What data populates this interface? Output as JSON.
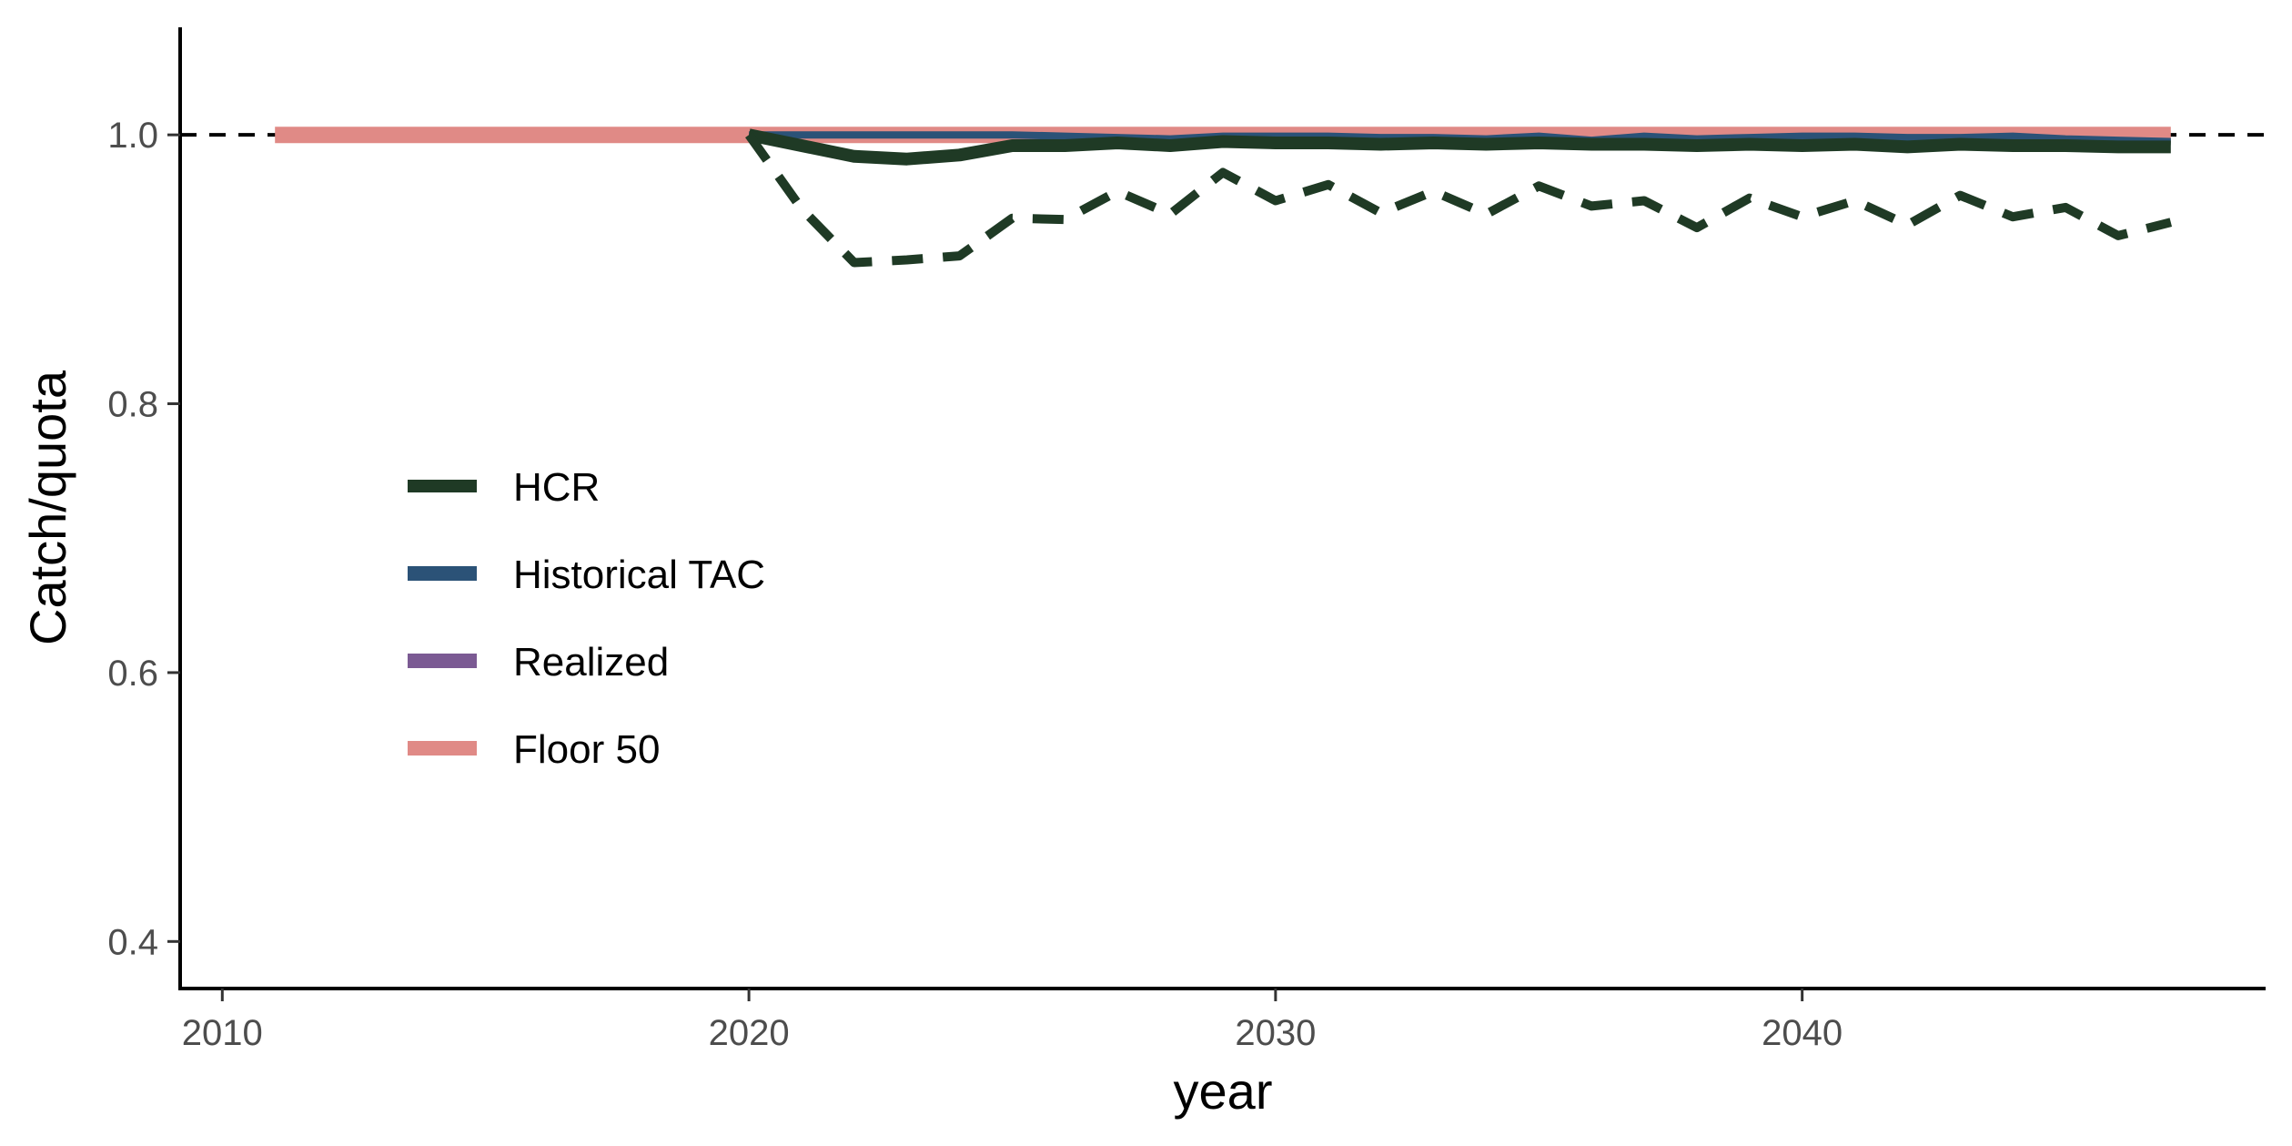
{
  "chart_data": {
    "type": "line",
    "title": "",
    "xlabel": "year",
    "ylabel": "Catch/quota",
    "xlim": [
      2009.2,
      2048.8
    ],
    "ylim": [
      0.365,
      1.08
    ],
    "x_ticks": [
      2010,
      2020,
      2030,
      2040
    ],
    "y_ticks": [
      0.4,
      0.6,
      0.8,
      1.0
    ],
    "x_tick_labels": [
      "2010",
      "2020",
      "2030",
      "2040"
    ],
    "y_tick_labels": [
      "0.4",
      "0.6",
      "0.8",
      "1.0"
    ],
    "reference_line": {
      "y": 1.0,
      "style": "dashed",
      "color": "#000000"
    },
    "grid": false,
    "legend_position": "left",
    "legend": [
      {
        "label": "HCR",
        "color": "#1f3a25"
      },
      {
        "label": "Historical TAC",
        "color": "#2b5277"
      },
      {
        "label": "Realized",
        "color": "#7b5a93"
      },
      {
        "label": "Floor 50",
        "color": "#e08a86"
      }
    ],
    "series": [
      {
        "name": "Floor 50",
        "color": "#e08a86",
        "style": "solid",
        "x": [
          2011,
          2012,
          2013,
          2014,
          2015,
          2016,
          2017,
          2018,
          2019,
          2020,
          2021,
          2022,
          2023,
          2024,
          2025,
          2026,
          2027,
          2028,
          2029,
          2030,
          2031,
          2032,
          2033,
          2034,
          2035,
          2036,
          2037,
          2038,
          2039,
          2040,
          2041,
          2042,
          2043,
          2044,
          2045,
          2046,
          2047
        ],
        "y": [
          1.0,
          1.0,
          1.0,
          1.0,
          1.0,
          1.0,
          1.0,
          1.0,
          1.0,
          1.0,
          1.0,
          1.0,
          1.0,
          1.0,
          1.0,
          1.0,
          1.0,
          1.0,
          1.0,
          1.0,
          1.0,
          1.0,
          1.0,
          1.0,
          1.0,
          1.0,
          1.0,
          1.0,
          1.0,
          1.0,
          1.0,
          1.0,
          1.0,
          1.0,
          1.0,
          1.0,
          1.0
        ]
      },
      {
        "name": "Historical TAC",
        "color": "#2b5277",
        "style": "solid",
        "x": [
          2020,
          2021,
          2022,
          2023,
          2024,
          2025,
          2026,
          2027,
          2028,
          2029,
          2030,
          2031,
          2032,
          2033,
          2034,
          2035,
          2036,
          2037,
          2038,
          2039,
          2040,
          2041,
          2042,
          2043,
          2044,
          2045,
          2046,
          2047
        ],
        "y": [
          1.0,
          1.0,
          1.0,
          1.0,
          1.0,
          1.0,
          0.999,
          0.998,
          0.997,
          0.999,
          0.999,
          0.999,
          0.998,
          0.998,
          0.997,
          0.999,
          0.996,
          0.999,
          0.997,
          0.998,
          0.999,
          0.999,
          0.998,
          0.998,
          0.999,
          0.997,
          0.996,
          0.995
        ]
      },
      {
        "name": "HCR",
        "color": "#1f3a25",
        "style": "solid",
        "x": [
          2020,
          2021,
          2022,
          2023,
          2024,
          2025,
          2026,
          2027,
          2028,
          2029,
          2030,
          2031,
          2032,
          2033,
          2034,
          2035,
          2036,
          2037,
          2038,
          2039,
          2040,
          2041,
          2042,
          2043,
          2044,
          2045,
          2046,
          2047
        ],
        "y": [
          1.0,
          0.992,
          0.984,
          0.982,
          0.985,
          0.992,
          0.992,
          0.994,
          0.992,
          0.995,
          0.994,
          0.994,
          0.993,
          0.994,
          0.993,
          0.994,
          0.993,
          0.993,
          0.992,
          0.993,
          0.992,
          0.993,
          0.991,
          0.993,
          0.992,
          0.992,
          0.991,
          0.991
        ]
      },
      {
        "name": "",
        "color": "#1f3a25",
        "style": "dashed",
        "x": [
          2020,
          2021,
          2022,
          2023,
          2024,
          2025,
          2026,
          2027,
          2028,
          2029,
          2030,
          2031,
          2032,
          2033,
          2034,
          2035,
          2036,
          2037,
          2038,
          2039,
          2040,
          2041,
          2042,
          2043,
          2044,
          2045,
          2046,
          2047
        ],
        "y": [
          1.0,
          0.945,
          0.905,
          0.907,
          0.91,
          0.938,
          0.937,
          0.958,
          0.941,
          0.972,
          0.951,
          0.963,
          0.942,
          0.958,
          0.941,
          0.962,
          0.947,
          0.951,
          0.931,
          0.953,
          0.939,
          0.951,
          0.933,
          0.955,
          0.939,
          0.946,
          0.925,
          0.935
        ]
      }
    ]
  }
}
